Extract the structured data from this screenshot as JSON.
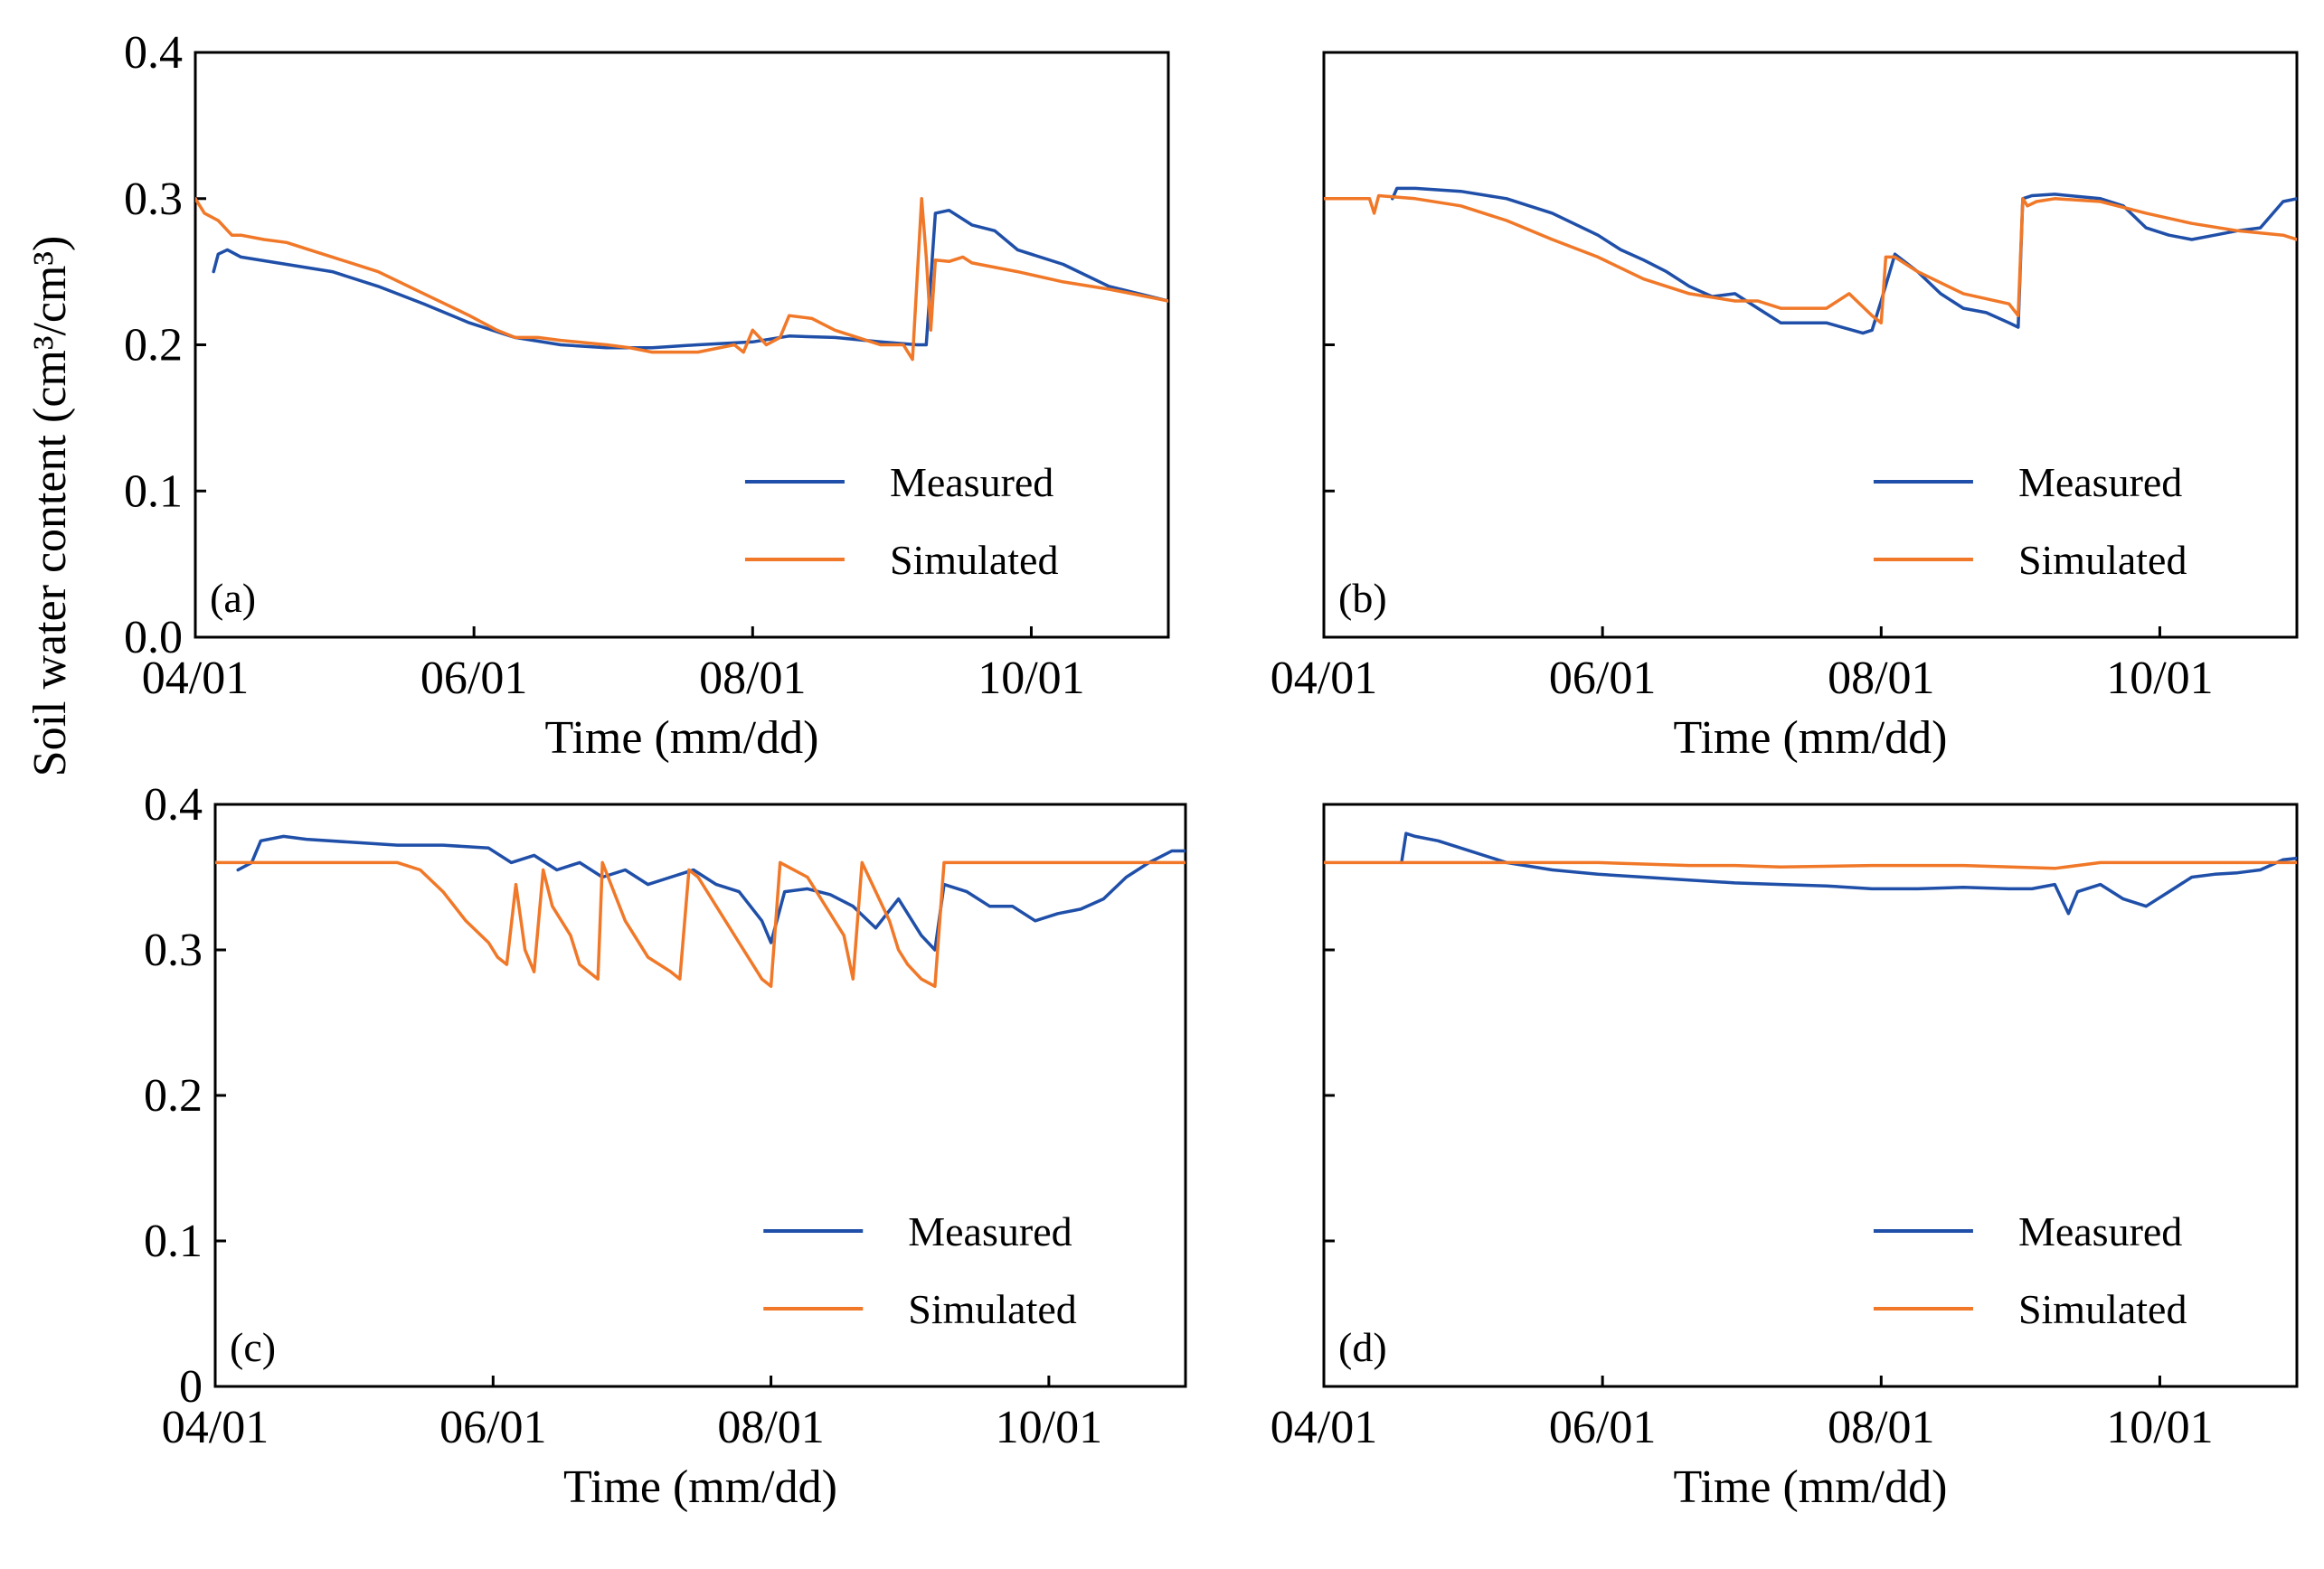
{
  "figure": {
    "shared_ylabel": "Soil water content (cm³/cm³)"
  },
  "chart_data": [
    {
      "type": "line",
      "panel": "(a)",
      "xlabel": "Time (mm/dd)",
      "x_ticks": [
        "04/01",
        "06/01",
        "08/01",
        "10/01"
      ],
      "x_tick_days": [
        0,
        61,
        122,
        183
      ],
      "xlim": [
        0,
        213
      ],
      "ylim": [
        0,
        0.4
      ],
      "y_ticks": [
        0.0,
        0.1,
        0.2,
        0.3,
        0.4
      ],
      "y_tick_labels": [
        "0.0",
        "0.1",
        "0.2",
        "0.3",
        "0.4"
      ],
      "legend": [
        "Measured",
        "Simulated"
      ],
      "legend_position": "bottom-right",
      "series": [
        {
          "name": "Measured",
          "color": "#1f4fa8",
          "x": [
            4,
            5,
            7,
            10,
            20,
            30,
            40,
            50,
            60,
            70,
            80,
            90,
            100,
            110,
            122,
            130,
            140,
            150,
            158,
            160,
            162,
            165,
            170,
            175,
            180,
            190,
            200,
            213
          ],
          "y": [
            0.25,
            0.262,
            0.265,
            0.26,
            0.255,
            0.25,
            0.24,
            0.228,
            0.215,
            0.205,
            0.2,
            0.198,
            0.198,
            0.2,
            0.202,
            0.206,
            0.205,
            0.202,
            0.2,
            0.2,
            0.29,
            0.292,
            0.282,
            0.278,
            0.265,
            0.255,
            0.24,
            0.23
          ]
        },
        {
          "name": "Simulated",
          "color": "#f07828",
          "x": [
            0,
            2,
            5,
            8,
            10,
            15,
            20,
            25,
            30,
            40,
            50,
            60,
            66,
            70,
            75,
            80,
            90,
            95,
            100,
            105,
            110,
            118,
            120,
            122,
            125,
            128,
            130,
            135,
            140,
            150,
            155,
            157,
            159,
            160,
            161,
            162,
            165,
            168,
            170,
            180,
            190,
            200,
            205,
            213
          ],
          "y": [
            0.3,
            0.29,
            0.285,
            0.275,
            0.275,
            0.272,
            0.27,
            0.265,
            0.26,
            0.25,
            0.235,
            0.22,
            0.21,
            0.205,
            0.205,
            0.203,
            0.2,
            0.198,
            0.195,
            0.195,
            0.195,
            0.2,
            0.195,
            0.21,
            0.2,
            0.205,
            0.22,
            0.218,
            0.21,
            0.2,
            0.2,
            0.19,
            0.3,
            0.26,
            0.21,
            0.258,
            0.257,
            0.26,
            0.256,
            0.25,
            0.243,
            0.238,
            0.235,
            0.23
          ]
        }
      ]
    },
    {
      "type": "line",
      "panel": "(b)",
      "xlabel": "Time (mm/dd)",
      "x_ticks": [
        "04/01",
        "06/01",
        "08/01",
        "10/01"
      ],
      "x_tick_days": [
        0,
        61,
        122,
        183
      ],
      "xlim": [
        0,
        213
      ],
      "ylim": [
        0,
        0.4
      ],
      "y_ticks": [
        0.0,
        0.1,
        0.2,
        0.3,
        0.4
      ],
      "y_tick_labels": [
        "",
        "",
        "",
        "",
        ""
      ],
      "legend": [
        "Measured",
        "Simulated"
      ],
      "legend_position": "bottom-right",
      "series": [
        {
          "name": "Measured",
          "color": "#1f4fa8",
          "x": [
            15,
            16,
            20,
            30,
            40,
            50,
            60,
            65,
            70,
            75,
            80,
            85,
            90,
            95,
            100,
            110,
            118,
            120,
            122,
            125,
            130,
            135,
            140,
            145,
            150,
            152,
            153,
            155,
            160,
            170,
            175,
            180,
            185,
            190,
            195,
            200,
            205,
            210,
            213
          ],
          "y": [
            0.3,
            0.307,
            0.307,
            0.305,
            0.3,
            0.29,
            0.275,
            0.265,
            0.258,
            0.25,
            0.24,
            0.233,
            0.235,
            0.225,
            0.215,
            0.215,
            0.208,
            0.21,
            0.23,
            0.262,
            0.25,
            0.235,
            0.225,
            0.222,
            0.215,
            0.212,
            0.3,
            0.302,
            0.303,
            0.3,
            0.295,
            0.28,
            0.275,
            0.272,
            0.275,
            0.278,
            0.28,
            0.298,
            0.3
          ]
        },
        {
          "name": "Simulated",
          "color": "#f07828",
          "x": [
            0,
            10,
            11,
            12,
            20,
            30,
            40,
            50,
            60,
            70,
            80,
            90,
            95,
            100,
            110,
            115,
            120,
            122,
            123,
            124,
            125,
            130,
            140,
            150,
            152,
            153,
            154,
            156,
            160,
            170,
            180,
            190,
            200,
            210,
            213
          ],
          "y": [
            0.3,
            0.3,
            0.29,
            0.302,
            0.3,
            0.295,
            0.285,
            0.272,
            0.26,
            0.245,
            0.235,
            0.23,
            0.23,
            0.225,
            0.225,
            0.235,
            0.22,
            0.215,
            0.26,
            0.26,
            0.26,
            0.25,
            0.235,
            0.228,
            0.22,
            0.3,
            0.295,
            0.298,
            0.3,
            0.298,
            0.29,
            0.283,
            0.278,
            0.275,
            0.272
          ]
        }
      ]
    },
    {
      "type": "line",
      "panel": "(c)",
      "xlabel": "Time (mm/dd)",
      "x_ticks": [
        "04/01",
        "06/01",
        "08/01",
        "10/01"
      ],
      "x_tick_days": [
        0,
        61,
        122,
        183
      ],
      "xlim": [
        0,
        213
      ],
      "ylim": [
        0,
        0.4
      ],
      "y_ticks": [
        0.0,
        0.1,
        0.2,
        0.3,
        0.4
      ],
      "y_tick_labels": [
        "0",
        "0.1",
        "0.2",
        "0.3",
        "0.4"
      ],
      "legend": [
        "Measured",
        "Simulated"
      ],
      "legend_position": "bottom-right",
      "series": [
        {
          "name": "Measured",
          "color": "#1f4fa8",
          "x": [
            5,
            8,
            10,
            15,
            20,
            30,
            40,
            50,
            60,
            65,
            70,
            75,
            80,
            85,
            90,
            95,
            100,
            105,
            110,
            115,
            120,
            122,
            125,
            130,
            135,
            140,
            145,
            150,
            155,
            158,
            160,
            165,
            170,
            175,
            180,
            185,
            190,
            195,
            200,
            205,
            210,
            213
          ],
          "y": [
            0.355,
            0.36,
            0.375,
            0.378,
            0.376,
            0.374,
            0.372,
            0.372,
            0.37,
            0.36,
            0.365,
            0.355,
            0.36,
            0.35,
            0.355,
            0.345,
            0.35,
            0.355,
            0.345,
            0.34,
            0.32,
            0.305,
            0.34,
            0.342,
            0.338,
            0.33,
            0.315,
            0.335,
            0.31,
            0.3,
            0.345,
            0.34,
            0.33,
            0.33,
            0.32,
            0.325,
            0.328,
            0.335,
            0.35,
            0.36,
            0.368,
            0.368
          ]
        },
        {
          "name": "Simulated",
          "color": "#f07828",
          "x": [
            0,
            40,
            45,
            50,
            55,
            60,
            62,
            64,
            66,
            68,
            70,
            72,
            74,
            78,
            80,
            82,
            84,
            85,
            90,
            95,
            100,
            102,
            104,
            106,
            110,
            115,
            118,
            120,
            122,
            124,
            130,
            138,
            140,
            142,
            148,
            150,
            152,
            155,
            158,
            160,
            213
          ],
          "y": [
            0.36,
            0.36,
            0.355,
            0.34,
            0.32,
            0.305,
            0.295,
            0.29,
            0.345,
            0.3,
            0.285,
            0.355,
            0.33,
            0.31,
            0.29,
            0.285,
            0.28,
            0.36,
            0.32,
            0.295,
            0.285,
            0.28,
            0.355,
            0.35,
            0.33,
            0.305,
            0.29,
            0.28,
            0.275,
            0.36,
            0.35,
            0.31,
            0.28,
            0.36,
            0.32,
            0.3,
            0.29,
            0.28,
            0.275,
            0.36,
            0.36
          ]
        }
      ]
    },
    {
      "type": "line",
      "panel": "(d)",
      "xlabel": "Time (mm/dd)",
      "x_ticks": [
        "04/01",
        "06/01",
        "08/01",
        "10/01"
      ],
      "x_tick_days": [
        0,
        61,
        122,
        183
      ],
      "xlim": [
        0,
        213
      ],
      "ylim": [
        0,
        0.4
      ],
      "y_ticks": [
        0.0,
        0.1,
        0.2,
        0.3,
        0.4
      ],
      "y_tick_labels": [
        "",
        "",
        "",
        "",
        ""
      ],
      "legend": [
        "Measured",
        "Simulated"
      ],
      "legend_position": "bottom-right",
      "series": [
        {
          "name": "Measured",
          "color": "#1f4fa8",
          "x": [
            17,
            18,
            20,
            25,
            30,
            40,
            50,
            60,
            70,
            80,
            90,
            100,
            110,
            120,
            130,
            140,
            150,
            155,
            160,
            163,
            165,
            170,
            175,
            180,
            185,
            190,
            195,
            200,
            205,
            210,
            213
          ],
          "y": [
            0.36,
            0.38,
            0.378,
            0.375,
            0.37,
            0.36,
            0.355,
            0.352,
            0.35,
            0.348,
            0.346,
            0.345,
            0.344,
            0.342,
            0.342,
            0.343,
            0.342,
            0.342,
            0.345,
            0.325,
            0.34,
            0.345,
            0.335,
            0.33,
            0.34,
            0.35,
            0.352,
            0.353,
            0.355,
            0.362,
            0.363
          ]
        },
        {
          "name": "Simulated",
          "color": "#f07828",
          "x": [
            0,
            45,
            60,
            80,
            90,
            100,
            120,
            140,
            160,
            170,
            190,
            210,
            213
          ],
          "y": [
            0.36,
            0.36,
            0.36,
            0.358,
            0.358,
            0.357,
            0.358,
            0.358,
            0.356,
            0.36,
            0.36,
            0.36,
            0.36
          ]
        }
      ]
    }
  ]
}
